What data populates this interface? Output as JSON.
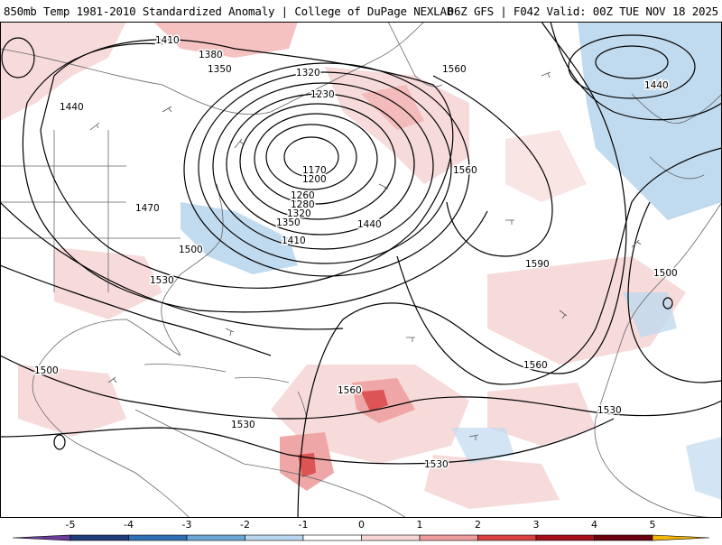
{
  "header": {
    "title": "850mb Temp 1981-2010 Standardized Anomaly | College of DuPage NEXLAB",
    "run_info": "06Z GFS | F042 Valid: 00Z TUE NOV 18 2025"
  },
  "colorbar": {
    "ticks": [
      "-5",
      "-4",
      "-3",
      "-2",
      "-1",
      "0",
      "1",
      "2",
      "3",
      "4",
      "5"
    ],
    "colors": [
      "#6a3d9a",
      "#1f3d7a",
      "#2f6fb3",
      "#6aa6d6",
      "#b9d6ee",
      "#ffffff",
      "#f7d6d6",
      "#ee9c9c",
      "#d94141",
      "#a30f1a",
      "#6b0010",
      "#f2b705"
    ]
  },
  "contour_labels": [
    {
      "text": "1410",
      "id": "c1410-nw"
    },
    {
      "text": "1380",
      "id": "c1380"
    },
    {
      "text": "1350",
      "id": "c1350-n"
    },
    {
      "text": "1320",
      "id": "c1320-n"
    },
    {
      "text": "1230",
      "id": "c1230"
    },
    {
      "text": "1440",
      "id": "c1440-w"
    },
    {
      "text": "1170",
      "id": "c1170"
    },
    {
      "text": "1200",
      "id": "c1200"
    },
    {
      "text": "1260",
      "id": "c1260"
    },
    {
      "text": "1280",
      "id": "c1280"
    },
    {
      "text": "1320",
      "id": "c1320-s"
    },
    {
      "text": "1350",
      "id": "c1350-s"
    },
    {
      "text": "1410",
      "id": "c1410-s"
    },
    {
      "text": "1440",
      "id": "c1440-s"
    },
    {
      "text": "1470",
      "id": "c1470"
    },
    {
      "text": "1500",
      "id": "c1500-w"
    },
    {
      "text": "1530",
      "id": "c1530-fl"
    },
    {
      "text": "1560",
      "id": "c1560-ne"
    },
    {
      "text": "1560",
      "id": "c1560-c"
    },
    {
      "text": "1590",
      "id": "c1590"
    },
    {
      "text": "1440",
      "id": "c1440-ne"
    },
    {
      "text": "1500",
      "id": "c1500-e"
    },
    {
      "text": "1560",
      "id": "c1560-se"
    },
    {
      "text": "1560",
      "id": "c1560-carib"
    },
    {
      "text": "1530",
      "id": "c1530-africa"
    },
    {
      "text": "1500",
      "id": "c1500-gulf"
    },
    {
      "text": "1530",
      "id": "c1530-ca"
    },
    {
      "text": "1530",
      "id": "c1530-sa"
    }
  ]
}
